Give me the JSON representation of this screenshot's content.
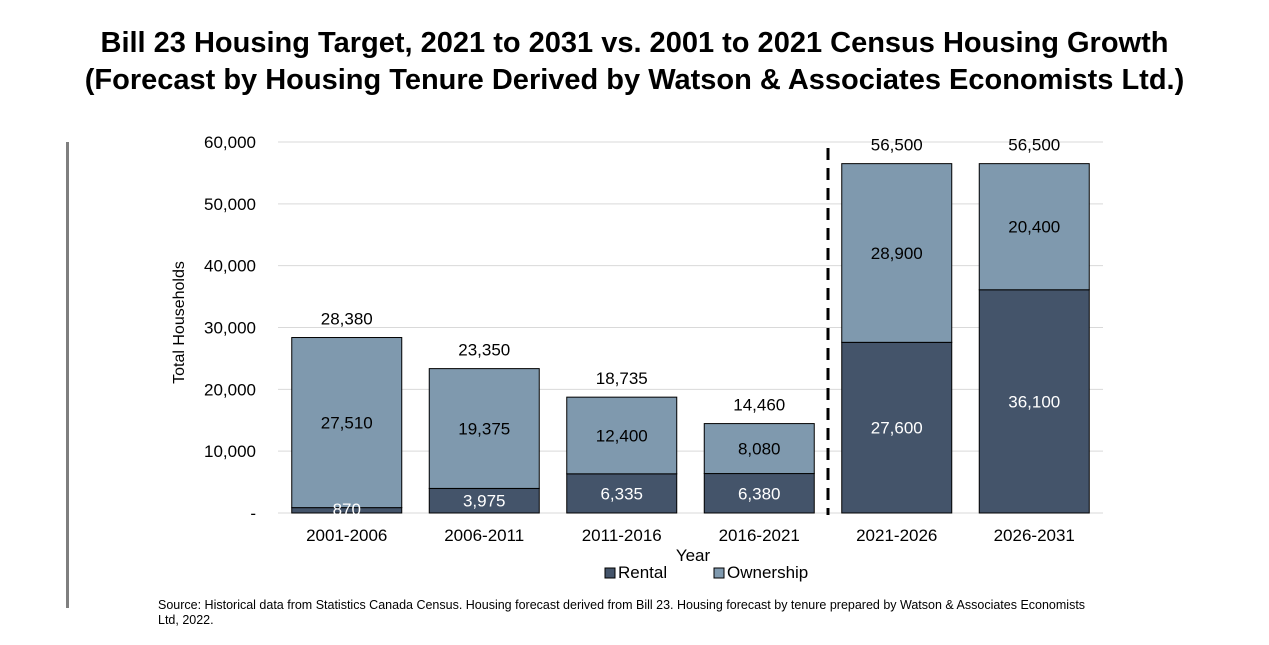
{
  "title": {
    "line1": "Bill 23 Housing Target, 2021 to 2031 vs. 2001 to 2021 Census Housing Growth",
    "line2": "(Forecast by Housing Tenure Derived by Watson & Associates Economists Ltd.)"
  },
  "source": "Source: Historical data from Statistics Canada Census. Housing forecast derived from Bill 23. Housing forecast by tenure prepared by Watson & Associates Economists Ltd, 2022.",
  "colors": {
    "rental": "#44546a",
    "ownership": "#7f99ae",
    "grid": "#d9d9d9",
    "divider": "#000000"
  },
  "chart_data": {
    "type": "bar",
    "stacked": true,
    "categories": [
      "2001-2006",
      "2006-2011",
      "2011-2016",
      "2016-2021",
      "2021-2026",
      "2026-2031"
    ],
    "series": [
      {
        "name": "Rental",
        "values": [
          870,
          3975,
          6335,
          6380,
          27600,
          36100
        ]
      },
      {
        "name": "Ownership",
        "values": [
          27510,
          19375,
          12400,
          8080,
          28900,
          20400
        ]
      }
    ],
    "totals": [
      28380,
      23350,
      18735,
      14460,
      56500,
      56500
    ],
    "segment_labels": {
      "Rental": [
        "870",
        "3,975",
        "6,335",
        "6,380",
        "27,600",
        "36,100"
      ],
      "Ownership": [
        "27,510",
        "19,375",
        "12,400",
        "8,080",
        "28,900",
        "20,400"
      ]
    },
    "total_labels": [
      "28,380",
      "23,350",
      "18,735",
      "14,460",
      "56,500",
      "56,500"
    ],
    "xlabel": "Year",
    "ylabel": "Total Households",
    "ylim": [
      0,
      60000
    ],
    "yticks": [
      0,
      10000,
      20000,
      30000,
      40000,
      50000,
      60000
    ],
    "ytick_labels": [
      "-",
      "10,000",
      "20,000",
      "30,000",
      "40,000",
      "50,000",
      "60,000"
    ],
    "grid": true,
    "legend": "bottom",
    "divider_between": [
      "2016-2021",
      "2021-2026"
    ]
  }
}
